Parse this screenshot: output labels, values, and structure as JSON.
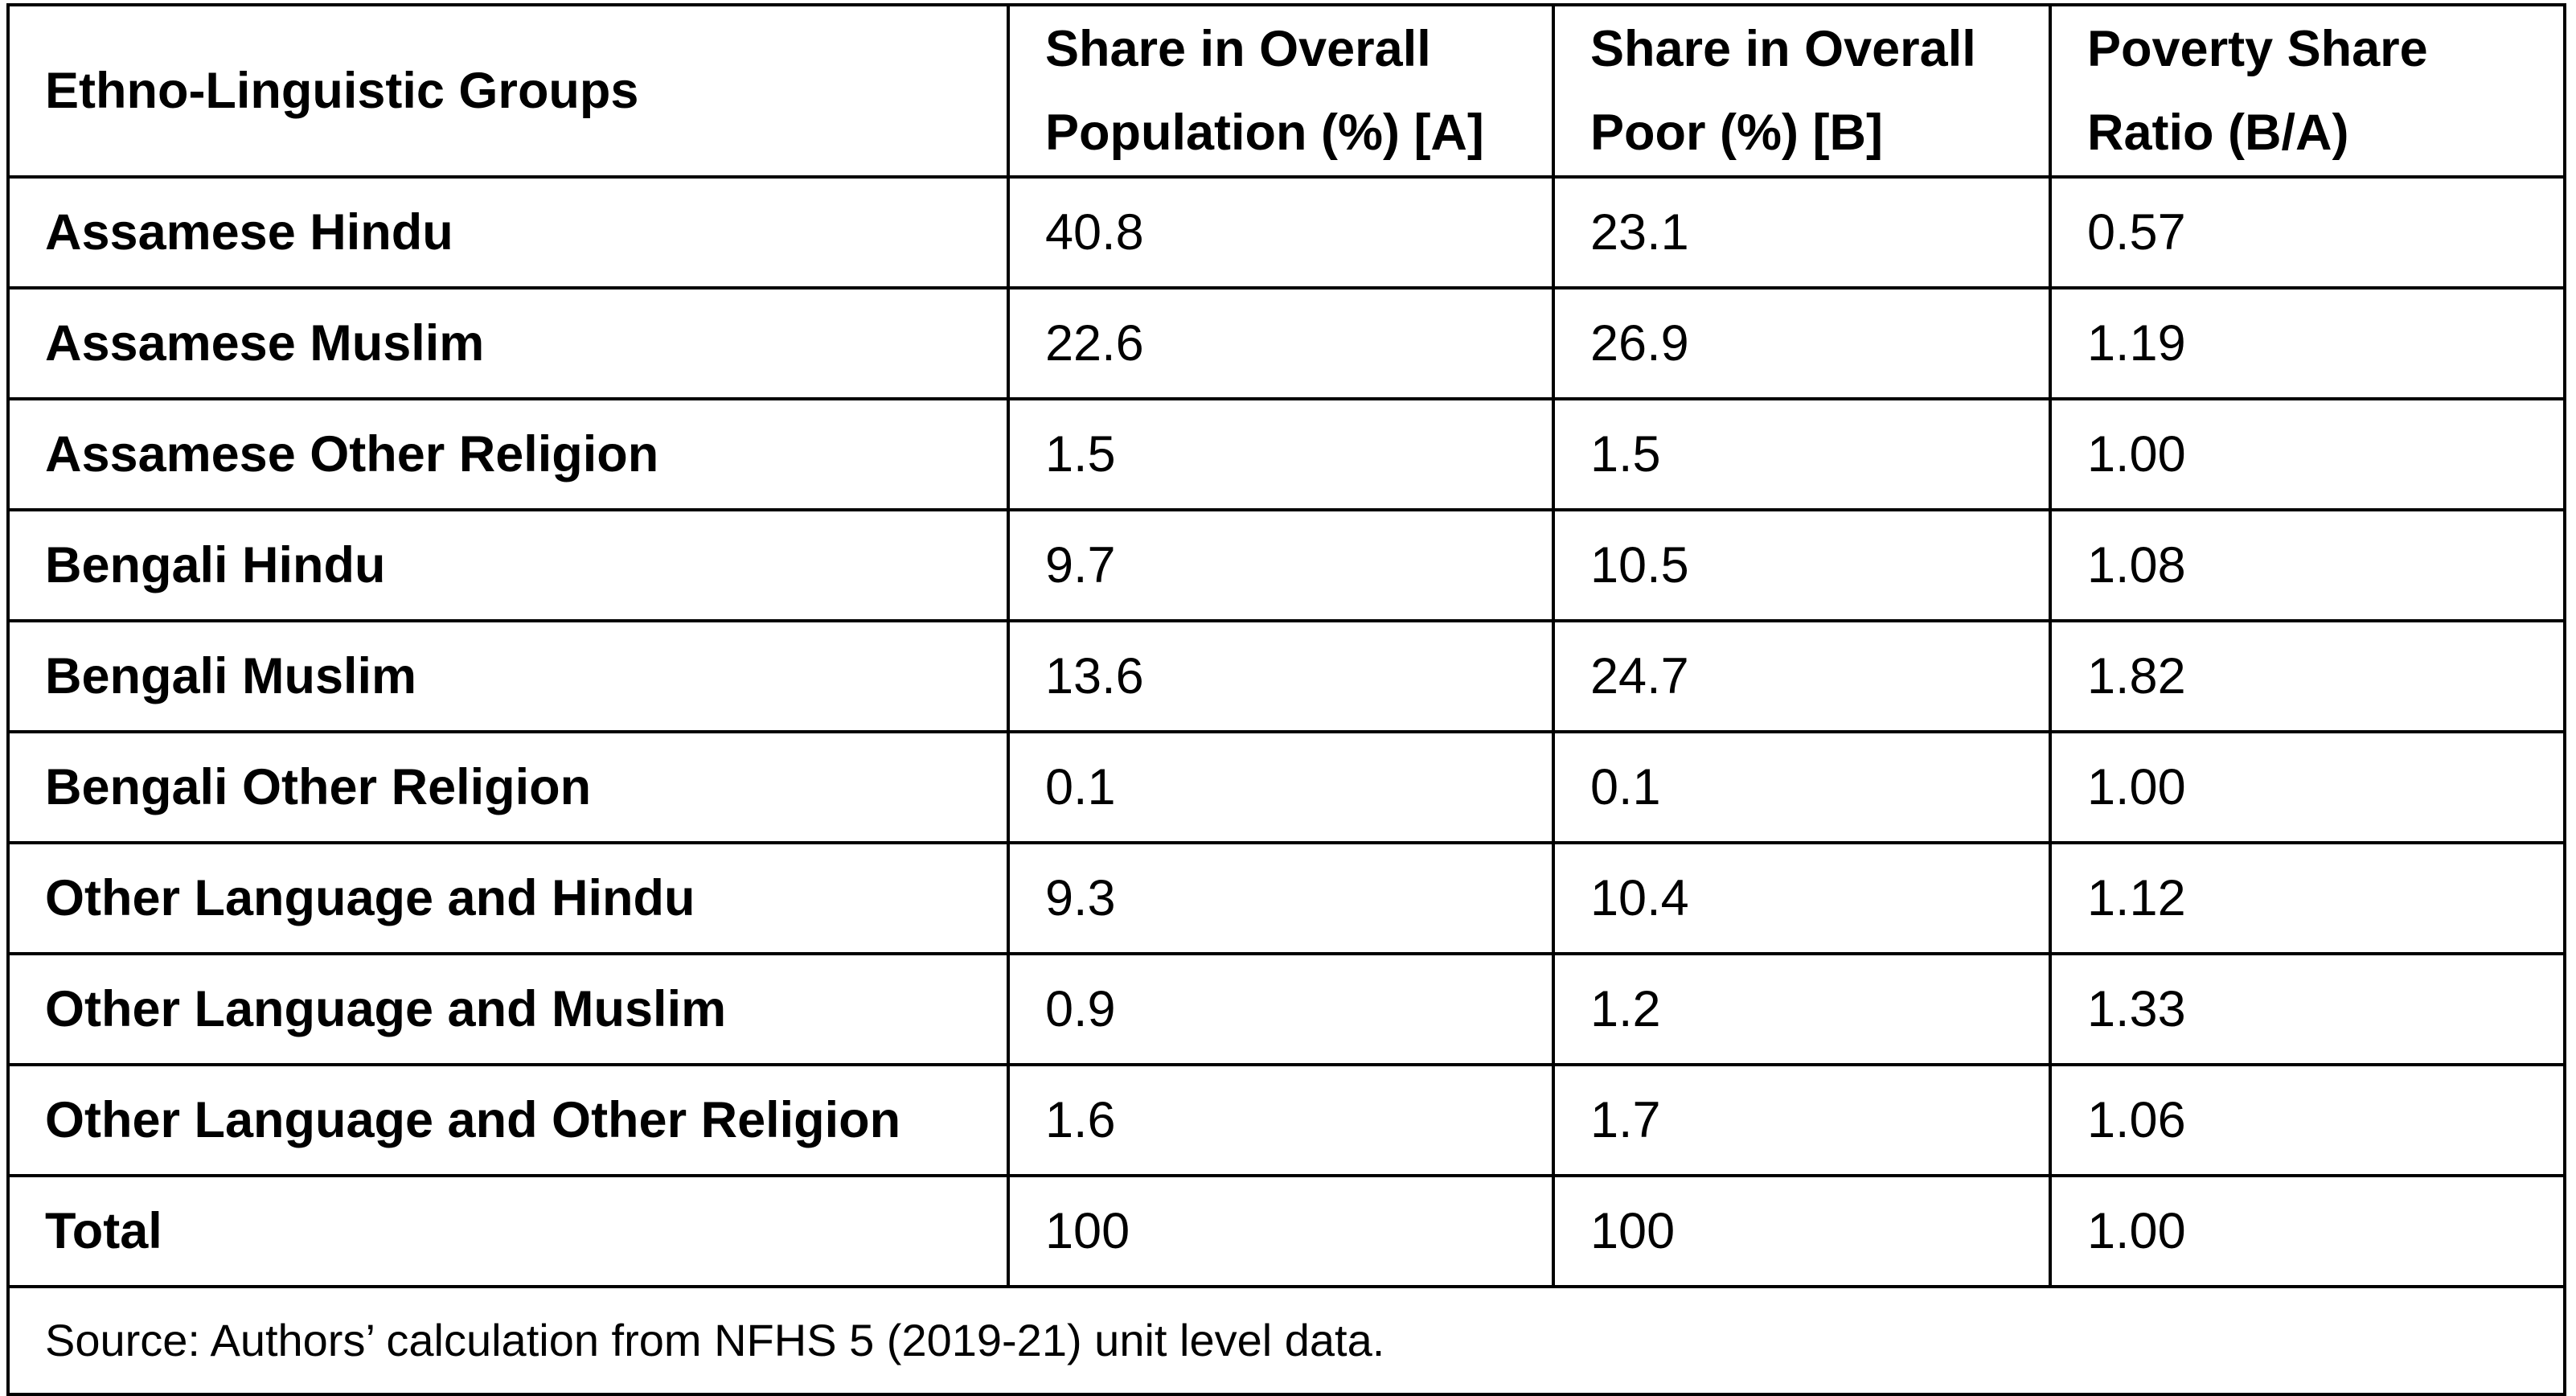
{
  "table": {
    "headers": [
      "Ethno-Linguistic Groups",
      "Share in Overall Population (%) [A]",
      "Share in Overall Poor (%) [B]",
      "Poverty Share Ratio (B/A)"
    ],
    "rows": [
      {
        "group": "Assamese Hindu",
        "population": "40.8",
        "poor": "23.1",
        "ratio": "0.57"
      },
      {
        "group": "Assamese Muslim",
        "population": "22.6",
        "poor": "26.9",
        "ratio": "1.19"
      },
      {
        "group": "Assamese Other Religion",
        "population": "1.5",
        "poor": "1.5",
        "ratio": "1.00"
      },
      {
        "group": "Bengali Hindu",
        "population": "9.7",
        "poor": "10.5",
        "ratio": "1.08"
      },
      {
        "group": "Bengali Muslim",
        "population": "13.6",
        "poor": "24.7",
        "ratio": "1.82"
      },
      {
        "group": "Bengali Other Religion",
        "population": "0.1",
        "poor": "0.1",
        "ratio": "1.00"
      },
      {
        "group": "Other Language and Hindu",
        "population": "9.3",
        "poor": "10.4",
        "ratio": "1.12"
      },
      {
        "group": "Other Language and Muslim",
        "population": "0.9",
        "poor": "1.2",
        "ratio": "1.33"
      },
      {
        "group": "Other Language and Other Religion",
        "population": "1.6",
        "poor": "1.7",
        "ratio": "1.06"
      },
      {
        "group": "Total",
        "population": "100",
        "poor": "100",
        "ratio": "1.00"
      }
    ],
    "source": "Source: Authors’ calculation from NFHS 5 (2019-21) unit level data."
  }
}
